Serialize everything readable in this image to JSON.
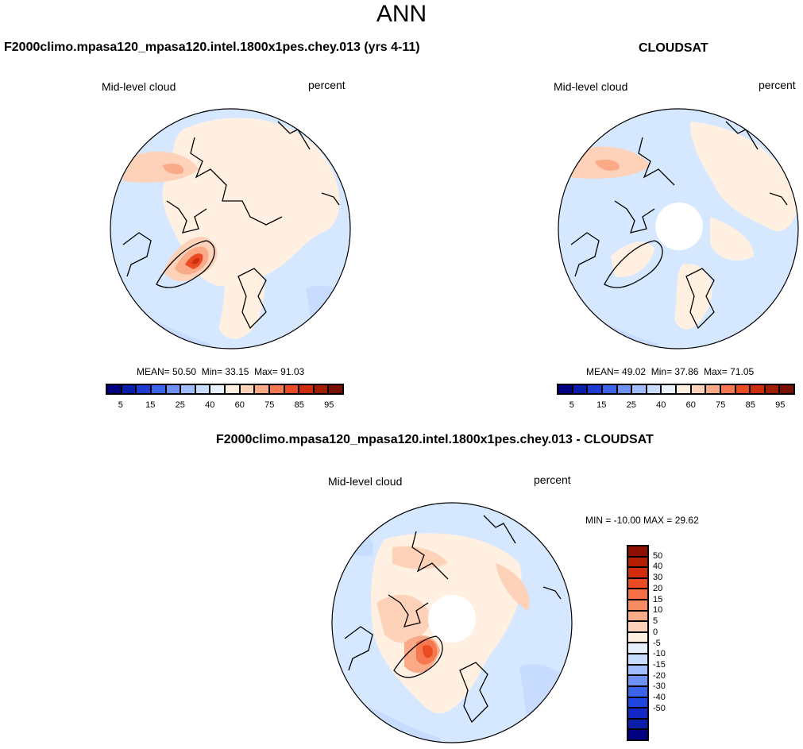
{
  "page": {
    "title": "ANN"
  },
  "panels": {
    "model": {
      "title": "F2000climo.mpasa120_mpasa120.intel.1800x1pes.chey.013 (yrs 4-11)",
      "variable": "Mid-level cloud",
      "units": "percent",
      "stats": {
        "mean_label": "MEAN=",
        "mean": "50.50",
        "min_label": "Min=",
        "min": "33.15",
        "max_label": "Max=",
        "max": "91.03"
      }
    },
    "obs": {
      "title": "CLOUDSAT",
      "variable": "Mid-level cloud",
      "units": "percent",
      "stats": {
        "mean_label": "MEAN=",
        "mean": "49.02",
        "min_label": "Min=",
        "min": "37.86",
        "max_label": "Max=",
        "max": "71.05"
      }
    },
    "diff": {
      "title": "F2000climo.mpasa120_mpasa120.intel.1800x1pes.chey.013 - CLOUDSAT",
      "variable": "Mid-level cloud",
      "units": "percent",
      "minmax_text": "MIN = -10.00 MAX =  29.62"
    }
  },
  "colorbars": {
    "abs_colors": [
      "#000080",
      "#0a1eaa",
      "#1e3cd2",
      "#3c64eb",
      "#6e91f5",
      "#a0beff",
      "#c8dcff",
      "#e8f2ff",
      "#fff0e1",
      "#fdd2b9",
      "#faaa87",
      "#f57850",
      "#eb4b23",
      "#cd2d0a",
      "#a01e00",
      "#780f00"
    ],
    "abs_ticks": [
      "5",
      "15",
      "25",
      "40",
      "60",
      "75",
      "85",
      "95"
    ],
    "diff_colors": [
      "#000080",
      "#0a1eaa",
      "#1428c8",
      "#1e46e1",
      "#3c64eb",
      "#6e91f5",
      "#a0beff",
      "#c8dcff",
      "#e6f0ff",
      "#fff0e1",
      "#fdd2b9",
      "#faaa87",
      "#f78c64",
      "#f56e46",
      "#eb4b23",
      "#d22d0a",
      "#b41e00",
      "#8c0f00"
    ],
    "diff_ticks": [
      "50",
      "40",
      "30",
      "20",
      "15",
      "10",
      "5",
      "0",
      "-5",
      "-10",
      "-15",
      "-20",
      "-30",
      "-40",
      "-50"
    ]
  },
  "chart_data": [
    {
      "type": "heatmap",
      "projection": "north polar stereographic",
      "title": "F2000climo.mpasa120_mpasa120.intel.1800x1pes.chey.013 (yrs 4-11)",
      "variable": "Mid-level cloud",
      "units": "percent",
      "mean": 50.5,
      "min": 33.15,
      "max": 91.03,
      "levels": [
        5,
        10,
        15,
        20,
        25,
        30,
        40,
        50,
        60,
        70,
        75,
        80,
        85,
        90,
        95
      ]
    },
    {
      "type": "heatmap",
      "projection": "north polar stereographic",
      "title": "CLOUDSAT",
      "variable": "Mid-level cloud",
      "units": "percent",
      "mean": 49.02,
      "min": 37.86,
      "max": 71.05,
      "levels": [
        5,
        10,
        15,
        20,
        25,
        30,
        40,
        50,
        60,
        70,
        75,
        80,
        85,
        90,
        95
      ]
    },
    {
      "type": "heatmap",
      "projection": "north polar stereographic",
      "title": "F2000climo.mpasa120_mpasa120.intel.1800x1pes.chey.013 - CLOUDSAT",
      "variable": "Mid-level cloud",
      "units": "percent",
      "min": -10.0,
      "max": 29.62,
      "levels": [
        -50,
        -40,
        -30,
        -20,
        -15,
        -10,
        -5,
        0,
        5,
        10,
        15,
        20,
        30,
        40,
        50
      ]
    }
  ]
}
